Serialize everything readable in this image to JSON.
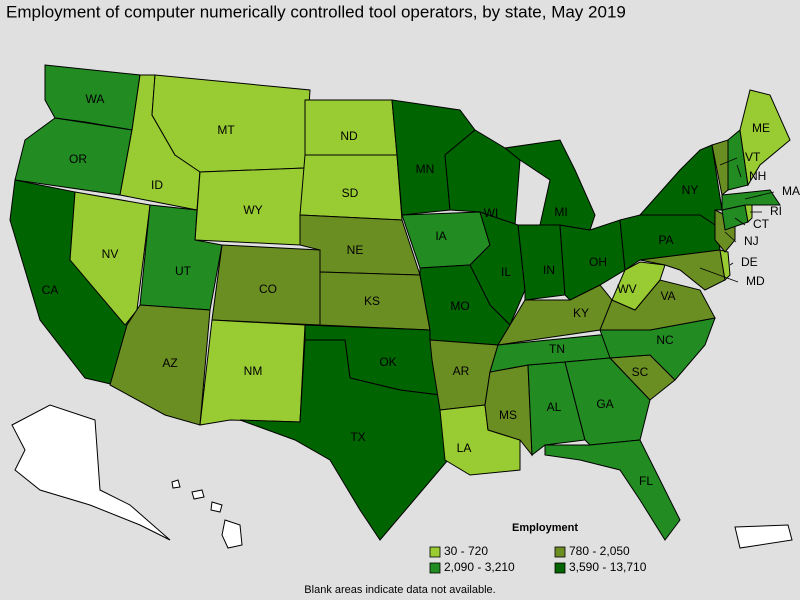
{
  "title": "Employment of computer numerically controlled tool operators, by state, May 2019",
  "legend": {
    "title": "Employment",
    "items": [
      {
        "label": "30 - 720",
        "color": "#99cc33"
      },
      {
        "label": "780 - 2,050",
        "color": "#6b8e23"
      },
      {
        "label": "2,090 - 3,210",
        "color": "#228b22"
      },
      {
        "label": "3,590 - 13,710",
        "color": "#006400"
      }
    ]
  },
  "states": [
    {
      "label": "WA",
      "class": 2
    },
    {
      "label": "OR",
      "class": 2
    },
    {
      "label": "CA",
      "class": 3
    },
    {
      "label": "NV",
      "class": 0
    },
    {
      "label": "ID",
      "class": 0
    },
    {
      "label": "MT",
      "class": 0
    },
    {
      "label": "WY",
      "class": 0
    },
    {
      "label": "UT",
      "class": 2
    },
    {
      "label": "AZ",
      "class": 1
    },
    {
      "label": "CO",
      "class": 1
    },
    {
      "label": "NM",
      "class": 0
    },
    {
      "label": "ND",
      "class": 0
    },
    {
      "label": "SD",
      "class": 0
    },
    {
      "label": "NE",
      "class": 1
    },
    {
      "label": "KS",
      "class": 1
    },
    {
      "label": "OK",
      "class": 3
    },
    {
      "label": "TX",
      "class": 3
    },
    {
      "label": "MN",
      "class": 3
    },
    {
      "label": "IA",
      "class": 2
    },
    {
      "label": "WI",
      "class": 3
    },
    {
      "label": "IL",
      "class": 3
    },
    {
      "label": "MO",
      "class": 3
    },
    {
      "label": "AR",
      "class": 1
    },
    {
      "label": "LA",
      "class": 0
    },
    {
      "label": "MS",
      "class": 1
    },
    {
      "label": "AL",
      "class": 2
    },
    {
      "label": "TN",
      "class": 2
    },
    {
      "label": "KY",
      "class": 1
    },
    {
      "label": "IN",
      "class": 3
    },
    {
      "label": "OH",
      "class": 3
    },
    {
      "label": "MI",
      "class": 3
    },
    {
      "label": "GA",
      "class": 2
    },
    {
      "label": "FL",
      "class": 2
    },
    {
      "label": "SC",
      "class": 1
    },
    {
      "label": "NC",
      "class": 2
    },
    {
      "label": "VA",
      "class": 1
    },
    {
      "label": "WV",
      "class": 0
    },
    {
      "label": "PA",
      "class": 3
    },
    {
      "label": "NY",
      "class": 3
    },
    {
      "label": "MD",
      "class": 1
    },
    {
      "label": "DE",
      "class": 0
    },
    {
      "label": "NJ",
      "class": 1
    },
    {
      "label": "CT",
      "class": 2
    },
    {
      "label": "RI",
      "class": 0
    },
    {
      "label": "MA",
      "class": 2
    },
    {
      "label": "VT",
      "class": 1
    },
    {
      "label": "NH",
      "class": 2
    },
    {
      "label": "ME",
      "class": 0
    }
  ],
  "note": "Blank areas indicate data not available."
}
